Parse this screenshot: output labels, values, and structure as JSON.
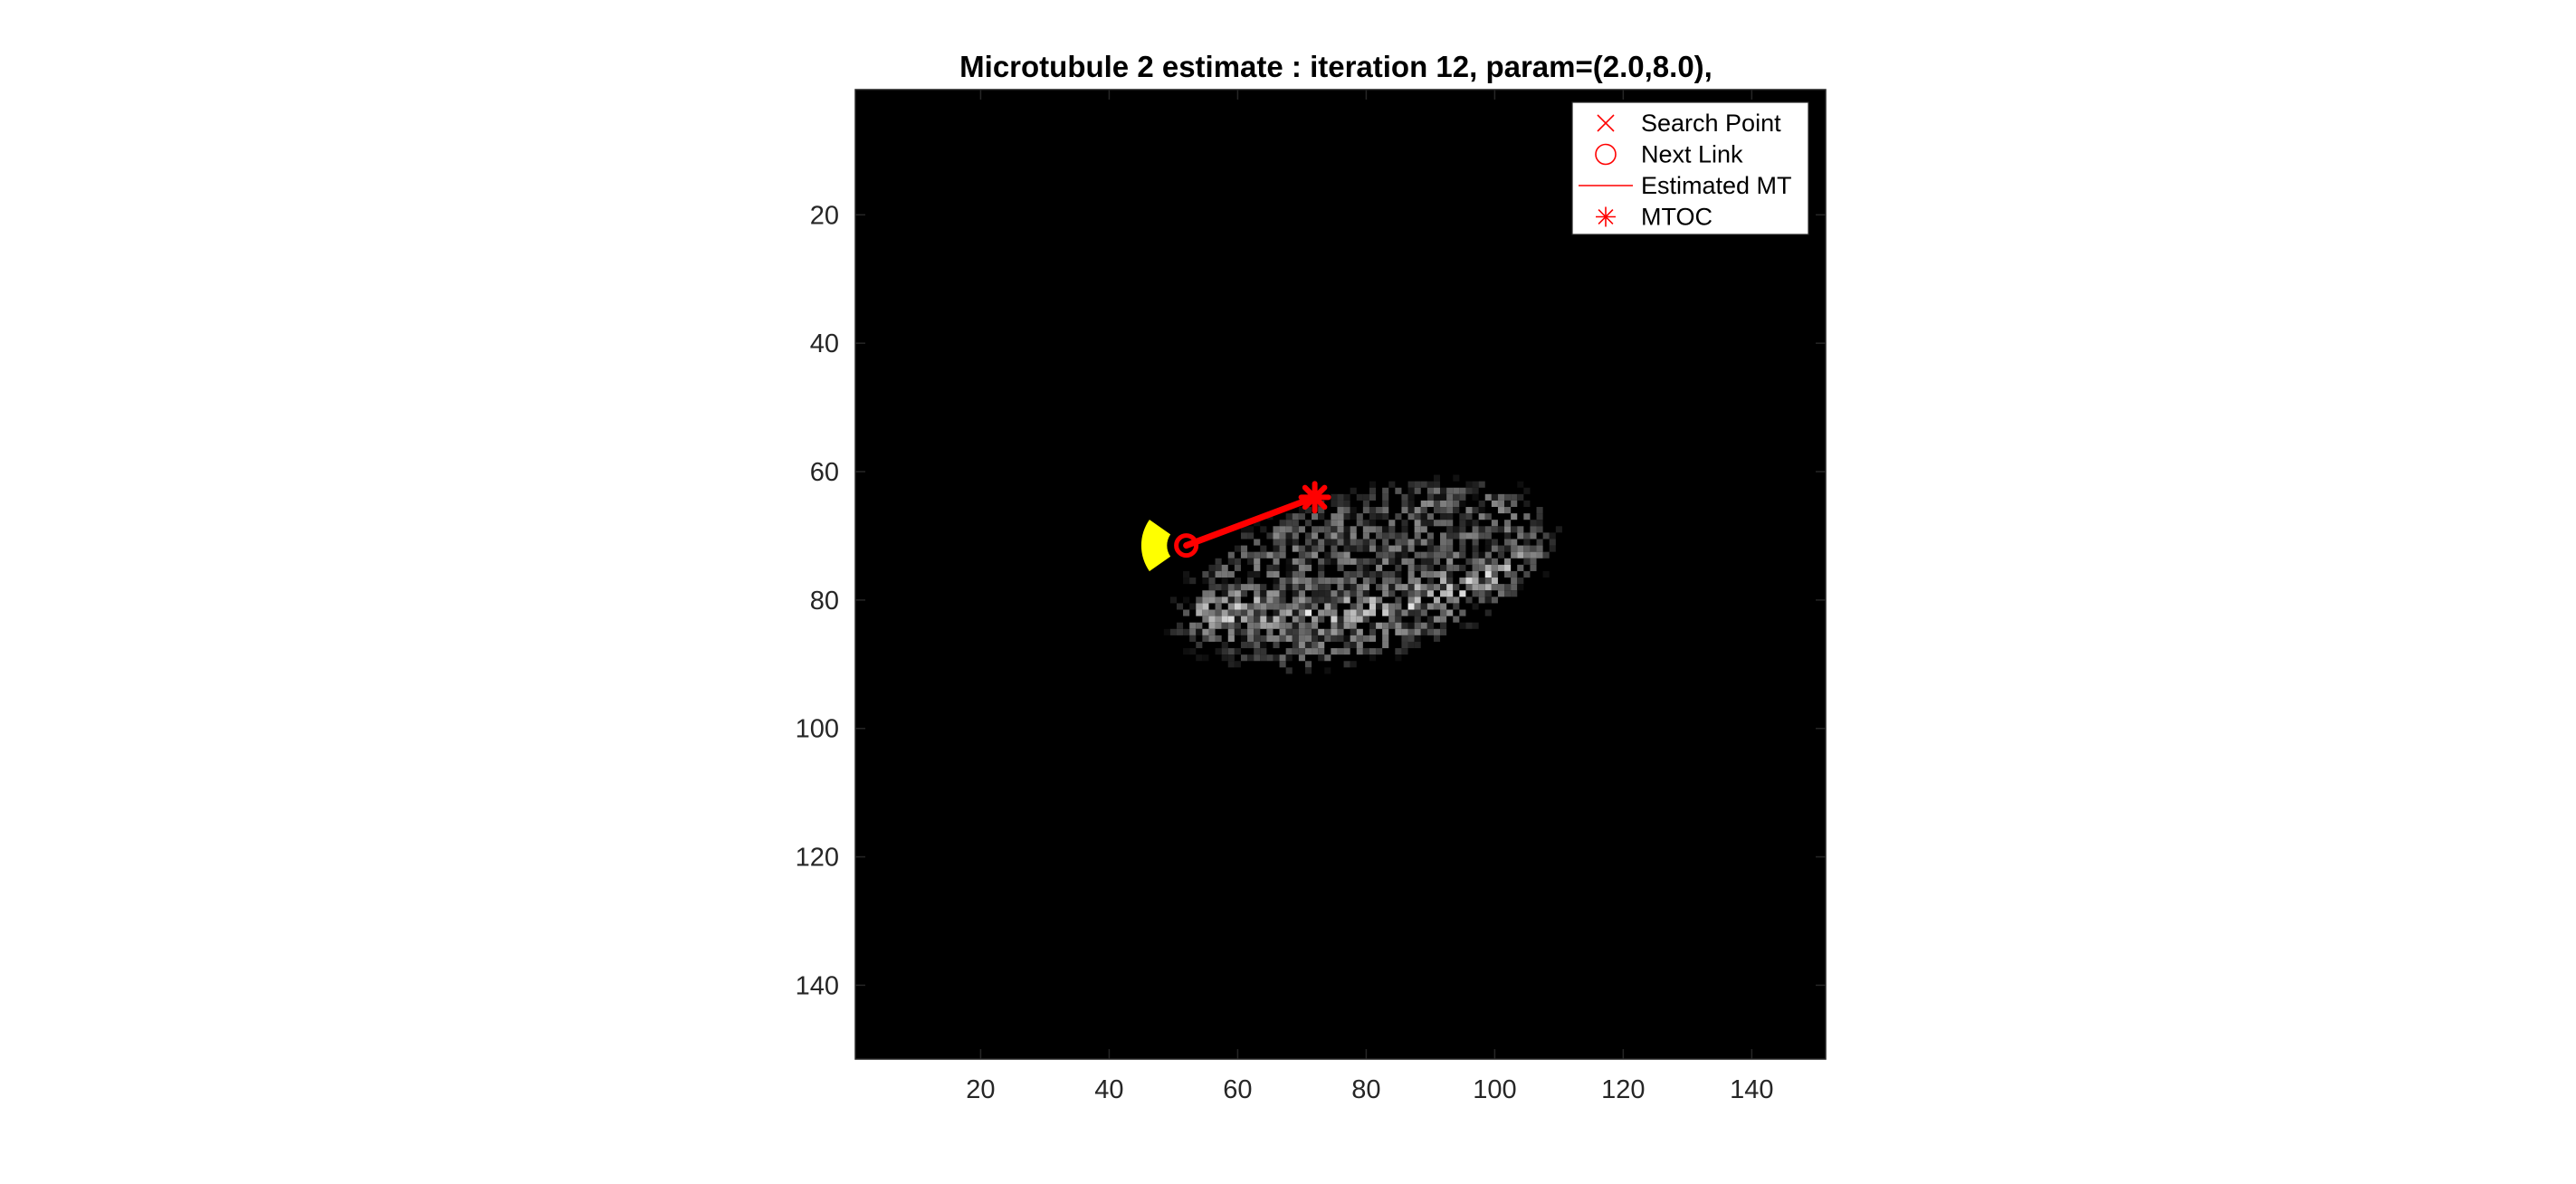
{
  "chart_data": {
    "type": "scatter",
    "title": "Microtubule 2 estimate : iteration 12, param=(2.0,8.0),",
    "xlabel": "",
    "ylabel": "",
    "xlim": [
      0.5,
      151.5
    ],
    "ylim": [
      0.5,
      151.5
    ],
    "y_reversed": true,
    "x_ticks": [
      "20",
      "40",
      "60",
      "80",
      "100",
      "120",
      "140"
    ],
    "y_ticks": [
      "20",
      "40",
      "60",
      "80",
      "100",
      "120",
      "140"
    ],
    "grid": false,
    "legend_position": "top-right",
    "legend": [
      {
        "label": "Search Point",
        "marker": "x",
        "color": "#ff0000"
      },
      {
        "label": "Next Link",
        "marker": "o",
        "color": "#ff0000"
      },
      {
        "label": "Estimated MT",
        "marker": "line",
        "color": "#ff0000"
      },
      {
        "label": "MTOC",
        "marker": "*",
        "color": "#ff0000"
      }
    ],
    "background_image": {
      "description_type": "grayscale-intensity",
      "blob_center": [
        80,
        76
      ],
      "blob_semi_axes": [
        30,
        13
      ],
      "blob_rotation_deg": -15,
      "bright_arc": [
        [
          45,
          84
        ],
        [
          60,
          82
        ],
        [
          75,
          82
        ],
        [
          90,
          80
        ],
        [
          100,
          76
        ],
        [
          108,
          72
        ]
      ],
      "background_color": "#000000"
    },
    "series": [
      {
        "name": "Estimated MT",
        "style": "line",
        "color": "#ff0000",
        "x": [
          52,
          72
        ],
        "y": [
          71.5,
          64
        ]
      },
      {
        "name": "Next Link",
        "style": "circle-marker",
        "color": "#ff0000",
        "x": [
          52
        ],
        "y": [
          71.5
        ]
      },
      {
        "name": "MTOC",
        "style": "star-marker",
        "color": "#ff0000",
        "x": [
          72
        ],
        "y": [
          64
        ]
      }
    ],
    "search_cone": {
      "color": "#ffff00",
      "center": [
        52,
        71.5
      ],
      "inner_radius": 3,
      "outer_radius": 7,
      "angle_from_deg": 145,
      "angle_to_deg": 215
    }
  }
}
